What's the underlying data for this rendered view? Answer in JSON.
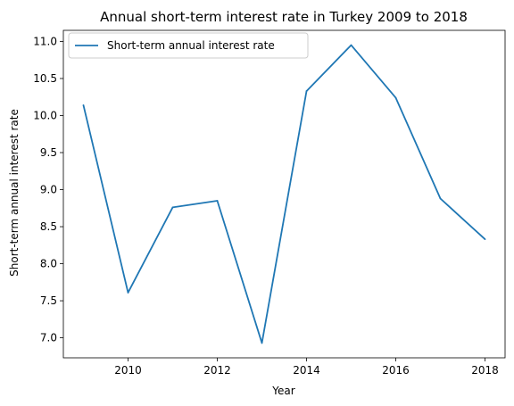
{
  "chart_data": {
    "type": "line",
    "title": "Annual short-term interest rate in Turkey 2009 to 2018",
    "xlabel": "Year",
    "ylabel": "Short-term annual interest rate",
    "x": [
      2009,
      2010,
      2011,
      2012,
      2013,
      2014,
      2015,
      2016,
      2017,
      2018
    ],
    "series": [
      {
        "name": "Short-term annual interest rate",
        "color": "#1f77b4",
        "values": [
          10.14,
          7.61,
          8.76,
          8.85,
          6.93,
          10.33,
          10.95,
          10.24,
          8.88,
          8.33
        ]
      }
    ],
    "xlim": [
      2008.55,
      2018.45
    ],
    "ylim": [
      6.73,
      11.15
    ],
    "xticks": [
      "2010",
      "2012",
      "2014",
      "2016",
      "2018"
    ],
    "yticks": [
      "7.0",
      "7.5",
      "8.0",
      "8.5",
      "9.0",
      "9.5",
      "10.0",
      "10.5",
      "11.0"
    ],
    "legend_position": "top-left",
    "grid": false
  }
}
